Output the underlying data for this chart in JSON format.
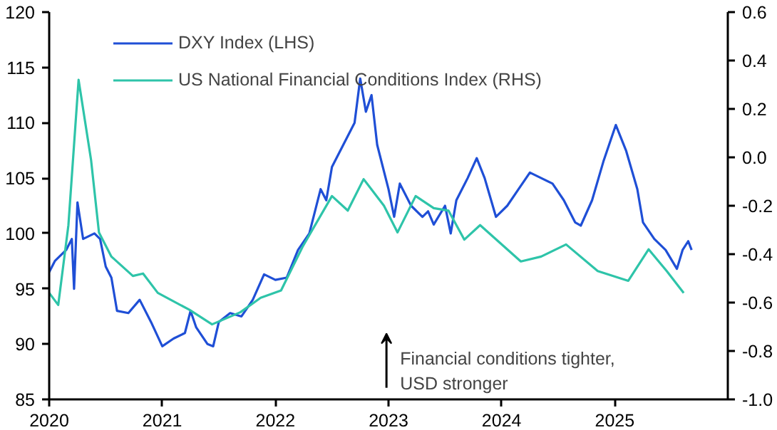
{
  "chart_data": {
    "type": "line",
    "xlim": [
      2020,
      2026
    ],
    "xticks": [
      2020,
      2021,
      2022,
      2023,
      2024,
      2025
    ],
    "ylim": [
      85,
      120
    ],
    "yticks": [
      85,
      90,
      95,
      100,
      105,
      110,
      115,
      120
    ],
    "y2lim": [
      -1.0,
      0.6
    ],
    "y2ticks": [
      {
        "value": -1.0,
        "label": "-1.0"
      },
      {
        "value": -0.8,
        "label": "-0.8"
      },
      {
        "value": -0.6,
        "label": "-0.6"
      },
      {
        "value": -0.4,
        "label": "-0.4"
      },
      {
        "value": -0.2,
        "label": "-0.2"
      },
      {
        "value": 0.0,
        "label": "0.0"
      },
      {
        "value": 0.2,
        "label": "0.2"
      },
      {
        "value": 0.4,
        "label": "0.4"
      },
      {
        "value": 0.6,
        "label": "0.6"
      }
    ],
    "grid": false,
    "legend": "top left",
    "annotations": [
      "Financial conditions tighter,\nUSD stronger"
    ],
    "series": [
      {
        "name": "DXY Index (LHS)",
        "color": "#1f4fd6",
        "x": [
          2020.0,
          2020.05,
          2020.15,
          2020.2,
          2020.22,
          2020.25,
          2020.3,
          2020.4,
          2020.45,
          2020.5,
          2020.55,
          2020.6,
          2020.7,
          2020.8,
          2020.9,
          2021.0,
          2021.1,
          2021.2,
          2021.25,
          2021.3,
          2021.4,
          2021.45,
          2021.5,
          2021.6,
          2021.7,
          2021.8,
          2021.9,
          2022.0,
          2022.1,
          2022.2,
          2022.3,
          2022.4,
          2022.45,
          2022.5,
          2022.6,
          2022.7,
          2022.75,
          2022.8,
          2022.85,
          2022.9,
          2023.0,
          2023.05,
          2023.1,
          2023.2,
          2023.3,
          2023.35,
          2023.4,
          2023.5,
          2023.55,
          2023.6,
          2023.7,
          2023.78,
          2023.85,
          2023.95,
          2024.05,
          2024.15,
          2024.25,
          2024.35,
          2024.45,
          2024.55,
          2024.65,
          2024.7,
          2024.8,
          2024.9,
          2024.95,
          2025.01,
          2025.1,
          2025.2,
          2025.25,
          2025.35,
          2025.45,
          2025.55,
          2025.6,
          2025.65,
          2025.68
        ],
        "values": [
          96.5,
          97.5,
          98.5,
          99.5,
          95,
          102.8,
          99.5,
          100,
          99.5,
          97,
          96,
          93,
          92.8,
          94,
          92,
          89.8,
          90.5,
          91,
          93,
          91.5,
          90,
          89.8,
          92,
          92.8,
          92.5,
          94,
          96.3,
          95.8,
          96,
          98.5,
          100,
          104,
          103,
          106,
          108,
          110,
          114,
          111,
          112.5,
          108,
          104,
          101.5,
          104.5,
          102.5,
          101.5,
          102,
          100.8,
          102.5,
          100,
          103,
          105,
          106.8,
          105,
          101.5,
          102.5,
          104,
          105.5,
          105,
          104.5,
          103,
          101,
          100.7,
          103,
          106.5,
          108,
          109.8,
          107.5,
          104,
          101,
          99.5,
          98.5,
          96.8,
          98.5,
          99.3,
          98.5
        ]
      },
      {
        "name": "US National Financial Conditions Index (RHS)",
        "color": "#2ec4a9",
        "axis": "y2",
        "x": [
          2020.0,
          2020.08,
          2020.17,
          2020.26,
          2020.37,
          2020.44,
          2020.55,
          2020.74,
          2020.83,
          2020.96,
          2021.24,
          2021.44,
          2021.69,
          2021.87,
          2022.05,
          2022.24,
          2022.5,
          2022.64,
          2022.78,
          2022.96,
          2023.08,
          2023.24,
          2023.4,
          2023.53,
          2023.67,
          2023.81,
          2024.17,
          2024.35,
          2024.57,
          2024.85,
          2025.12,
          2025.3,
          2025.46,
          2025.61
        ],
        "values": [
          -0.56,
          -0.61,
          -0.28,
          0.32,
          -0.01,
          -0.31,
          -0.41,
          -0.49,
          -0.48,
          -0.56,
          -0.63,
          -0.69,
          -0.64,
          -0.58,
          -0.55,
          -0.37,
          -0.16,
          -0.22,
          -0.09,
          -0.2,
          -0.31,
          -0.16,
          -0.21,
          -0.22,
          -0.34,
          -0.28,
          -0.43,
          -0.41,
          -0.36,
          -0.47,
          -0.51,
          -0.38,
          -0.47,
          -0.56
        ]
      }
    ]
  }
}
